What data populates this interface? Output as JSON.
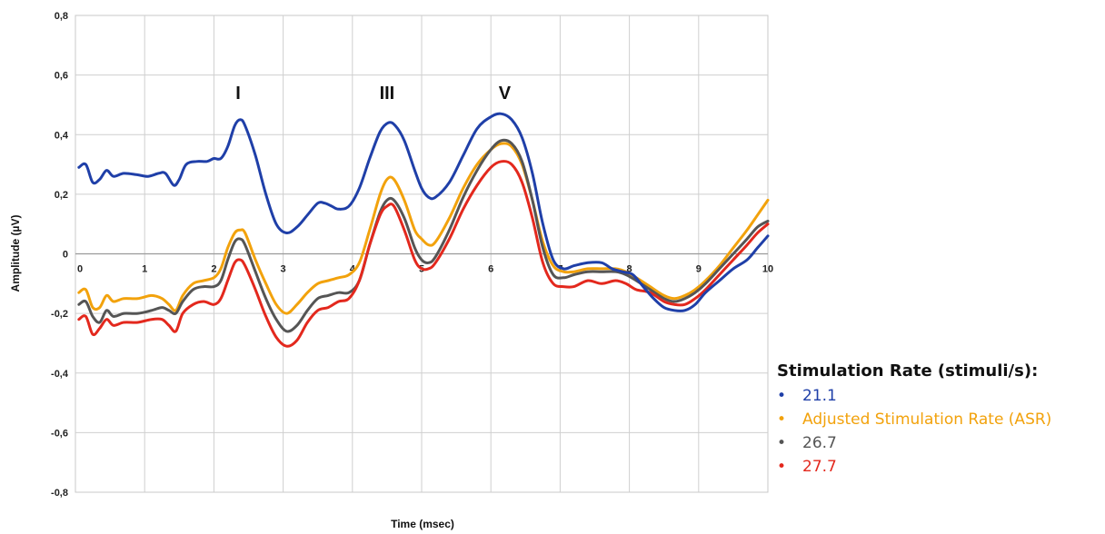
{
  "chart_data": {
    "type": "line",
    "xlabel": "Time (msec)",
    "ylabel": "Amplitude (µV)",
    "xlim": [
      0,
      10
    ],
    "ylim": [
      -0.8,
      0.8
    ],
    "x_ticks": [
      "0",
      "1",
      "2",
      "3",
      "4",
      "5",
      "6",
      "7",
      "8",
      "9",
      "10"
    ],
    "y_ticks": [
      "0,8",
      "0,6",
      "0,4",
      "0,2",
      "0",
      "-0,2",
      "-0,4",
      "-0,6",
      "-0,8"
    ],
    "grid": true,
    "legend_position": "bottom-right",
    "legend_title": "Stimulation Rate (stimuli/s):",
    "annotations": [
      {
        "text": "I",
        "x": 2.35,
        "y": 0.52
      },
      {
        "text": "III",
        "x": 4.5,
        "y": 0.52
      },
      {
        "text": "V",
        "x": 6.2,
        "y": 0.52
      }
    ],
    "series": [
      {
        "name": "21.1",
        "color": "#1f3fa8",
        "points": [
          [
            0.05,
            0.29
          ],
          [
            0.15,
            0.3
          ],
          [
            0.25,
            0.24
          ],
          [
            0.35,
            0.25
          ],
          [
            0.45,
            0.28
          ],
          [
            0.55,
            0.26
          ],
          [
            0.7,
            0.27
          ],
          [
            0.9,
            0.265
          ],
          [
            1.05,
            0.26
          ],
          [
            1.2,
            0.27
          ],
          [
            1.3,
            0.27
          ],
          [
            1.42,
            0.23
          ],
          [
            1.5,
            0.25
          ],
          [
            1.6,
            0.3
          ],
          [
            1.75,
            0.31
          ],
          [
            1.9,
            0.31
          ],
          [
            2.0,
            0.32
          ],
          [
            2.1,
            0.32
          ],
          [
            2.2,
            0.36
          ],
          [
            2.3,
            0.43
          ],
          [
            2.38,
            0.45
          ],
          [
            2.45,
            0.43
          ],
          [
            2.6,
            0.33
          ],
          [
            2.75,
            0.2
          ],
          [
            2.9,
            0.1
          ],
          [
            3.05,
            0.07
          ],
          [
            3.2,
            0.09
          ],
          [
            3.35,
            0.13
          ],
          [
            3.5,
            0.17
          ],
          [
            3.6,
            0.17
          ],
          [
            3.7,
            0.16
          ],
          [
            3.8,
            0.15
          ],
          [
            3.95,
            0.16
          ],
          [
            4.1,
            0.22
          ],
          [
            4.25,
            0.32
          ],
          [
            4.4,
            0.41
          ],
          [
            4.52,
            0.44
          ],
          [
            4.62,
            0.43
          ],
          [
            4.75,
            0.38
          ],
          [
            4.9,
            0.28
          ],
          [
            5.0,
            0.22
          ],
          [
            5.1,
            0.19
          ],
          [
            5.2,
            0.19
          ],
          [
            5.4,
            0.24
          ],
          [
            5.6,
            0.33
          ],
          [
            5.8,
            0.42
          ],
          [
            6.0,
            0.46
          ],
          [
            6.15,
            0.47
          ],
          [
            6.3,
            0.45
          ],
          [
            6.45,
            0.39
          ],
          [
            6.6,
            0.27
          ],
          [
            6.75,
            0.1
          ],
          [
            6.9,
            -0.02
          ],
          [
            7.05,
            -0.05
          ],
          [
            7.2,
            -0.04
          ],
          [
            7.4,
            -0.03
          ],
          [
            7.6,
            -0.03
          ],
          [
            7.75,
            -0.05
          ],
          [
            7.9,
            -0.06
          ],
          [
            8.05,
            -0.07
          ],
          [
            8.2,
            -0.11
          ],
          [
            8.35,
            -0.15
          ],
          [
            8.5,
            -0.18
          ],
          [
            8.65,
            -0.19
          ],
          [
            8.8,
            -0.19
          ],
          [
            8.95,
            -0.17
          ],
          [
            9.1,
            -0.13
          ],
          [
            9.3,
            -0.09
          ],
          [
            9.5,
            -0.05
          ],
          [
            9.7,
            -0.02
          ],
          [
            9.85,
            0.02
          ],
          [
            10.0,
            0.06
          ]
        ]
      },
      {
        "name": "Adjusted Stimulation Rate (ASR)",
        "color": "#f2a20c",
        "points": [
          [
            0.05,
            -0.13
          ],
          [
            0.15,
            -0.12
          ],
          [
            0.25,
            -0.18
          ],
          [
            0.35,
            -0.18
          ],
          [
            0.45,
            -0.14
          ],
          [
            0.55,
            -0.16
          ],
          [
            0.7,
            -0.15
          ],
          [
            0.9,
            -0.15
          ],
          [
            1.1,
            -0.14
          ],
          [
            1.25,
            -0.15
          ],
          [
            1.35,
            -0.17
          ],
          [
            1.45,
            -0.19
          ],
          [
            1.55,
            -0.14
          ],
          [
            1.7,
            -0.1
          ],
          [
            1.85,
            -0.09
          ],
          [
            2.0,
            -0.08
          ],
          [
            2.1,
            -0.05
          ],
          [
            2.2,
            0.02
          ],
          [
            2.3,
            0.07
          ],
          [
            2.38,
            0.08
          ],
          [
            2.45,
            0.07
          ],
          [
            2.6,
            -0.02
          ],
          [
            2.75,
            -0.1
          ],
          [
            2.9,
            -0.17
          ],
          [
            3.05,
            -0.2
          ],
          [
            3.2,
            -0.17
          ],
          [
            3.35,
            -0.13
          ],
          [
            3.5,
            -0.1
          ],
          [
            3.65,
            -0.09
          ],
          [
            3.8,
            -0.08
          ],
          [
            3.95,
            -0.07
          ],
          [
            4.1,
            -0.03
          ],
          [
            4.25,
            0.08
          ],
          [
            4.4,
            0.2
          ],
          [
            4.5,
            0.25
          ],
          [
            4.6,
            0.25
          ],
          [
            4.75,
            0.18
          ],
          [
            4.9,
            0.08
          ],
          [
            5.0,
            0.05
          ],
          [
            5.1,
            0.03
          ],
          [
            5.2,
            0.04
          ],
          [
            5.4,
            0.12
          ],
          [
            5.6,
            0.22
          ],
          [
            5.8,
            0.3
          ],
          [
            6.0,
            0.35
          ],
          [
            6.15,
            0.37
          ],
          [
            6.3,
            0.36
          ],
          [
            6.45,
            0.3
          ],
          [
            6.6,
            0.18
          ],
          [
            6.75,
            0.04
          ],
          [
            6.9,
            -0.04
          ],
          [
            7.05,
            -0.06
          ],
          [
            7.2,
            -0.06
          ],
          [
            7.4,
            -0.05
          ],
          [
            7.6,
            -0.05
          ],
          [
            7.8,
            -0.05
          ],
          [
            7.95,
            -0.06
          ],
          [
            8.1,
            -0.08
          ],
          [
            8.3,
            -0.11
          ],
          [
            8.5,
            -0.14
          ],
          [
            8.65,
            -0.15
          ],
          [
            8.8,
            -0.14
          ],
          [
            8.95,
            -0.12
          ],
          [
            9.1,
            -0.09
          ],
          [
            9.3,
            -0.04
          ],
          [
            9.5,
            0.02
          ],
          [
            9.7,
            0.08
          ],
          [
            9.85,
            0.13
          ],
          [
            10.0,
            0.18
          ]
        ]
      },
      {
        "name": "26.7",
        "color": "#555555",
        "points": [
          [
            0.05,
            -0.17
          ],
          [
            0.15,
            -0.16
          ],
          [
            0.25,
            -0.21
          ],
          [
            0.35,
            -0.23
          ],
          [
            0.45,
            -0.19
          ],
          [
            0.55,
            -0.21
          ],
          [
            0.7,
            -0.2
          ],
          [
            0.9,
            -0.2
          ],
          [
            1.1,
            -0.19
          ],
          [
            1.25,
            -0.18
          ],
          [
            1.35,
            -0.19
          ],
          [
            1.45,
            -0.2
          ],
          [
            1.55,
            -0.16
          ],
          [
            1.7,
            -0.12
          ],
          [
            1.85,
            -0.11
          ],
          [
            2.0,
            -0.11
          ],
          [
            2.1,
            -0.09
          ],
          [
            2.2,
            -0.02
          ],
          [
            2.3,
            0.04
          ],
          [
            2.38,
            0.05
          ],
          [
            2.45,
            0.03
          ],
          [
            2.6,
            -0.06
          ],
          [
            2.75,
            -0.15
          ],
          [
            2.9,
            -0.22
          ],
          [
            3.05,
            -0.26
          ],
          [
            3.2,
            -0.24
          ],
          [
            3.35,
            -0.19
          ],
          [
            3.5,
            -0.15
          ],
          [
            3.65,
            -0.14
          ],
          [
            3.8,
            -0.13
          ],
          [
            3.95,
            -0.13
          ],
          [
            4.1,
            -0.09
          ],
          [
            4.25,
            0.03
          ],
          [
            4.4,
            0.14
          ],
          [
            4.5,
            0.18
          ],
          [
            4.6,
            0.18
          ],
          [
            4.75,
            0.12
          ],
          [
            4.9,
            0.02
          ],
          [
            5.0,
            -0.02
          ],
          [
            5.1,
            -0.03
          ],
          [
            5.2,
            -0.01
          ],
          [
            5.4,
            0.08
          ],
          [
            5.6,
            0.19
          ],
          [
            5.8,
            0.28
          ],
          [
            6.0,
            0.35
          ],
          [
            6.15,
            0.38
          ],
          [
            6.3,
            0.37
          ],
          [
            6.45,
            0.31
          ],
          [
            6.6,
            0.18
          ],
          [
            6.75,
            0.02
          ],
          [
            6.9,
            -0.07
          ],
          [
            7.05,
            -0.08
          ],
          [
            7.2,
            -0.07
          ],
          [
            7.4,
            -0.06
          ],
          [
            7.6,
            -0.06
          ],
          [
            7.8,
            -0.06
          ],
          [
            7.95,
            -0.07
          ],
          [
            8.1,
            -0.09
          ],
          [
            8.3,
            -0.12
          ],
          [
            8.5,
            -0.15
          ],
          [
            8.65,
            -0.16
          ],
          [
            8.8,
            -0.15
          ],
          [
            8.95,
            -0.13
          ],
          [
            9.1,
            -0.1
          ],
          [
            9.3,
            -0.05
          ],
          [
            9.5,
            0.0
          ],
          [
            9.7,
            0.05
          ],
          [
            9.85,
            0.09
          ],
          [
            10.0,
            0.11
          ]
        ]
      },
      {
        "name": "27.7",
        "color": "#e3281d",
        "points": [
          [
            0.05,
            -0.22
          ],
          [
            0.15,
            -0.21
          ],
          [
            0.25,
            -0.27
          ],
          [
            0.35,
            -0.25
          ],
          [
            0.45,
            -0.22
          ],
          [
            0.55,
            -0.24
          ],
          [
            0.7,
            -0.23
          ],
          [
            0.9,
            -0.23
          ],
          [
            1.1,
            -0.22
          ],
          [
            1.25,
            -0.22
          ],
          [
            1.35,
            -0.24
          ],
          [
            1.45,
            -0.26
          ],
          [
            1.55,
            -0.2
          ],
          [
            1.7,
            -0.17
          ],
          [
            1.85,
            -0.16
          ],
          [
            2.0,
            -0.17
          ],
          [
            2.1,
            -0.15
          ],
          [
            2.2,
            -0.09
          ],
          [
            2.3,
            -0.03
          ],
          [
            2.38,
            -0.02
          ],
          [
            2.45,
            -0.04
          ],
          [
            2.6,
            -0.12
          ],
          [
            2.75,
            -0.21
          ],
          [
            2.9,
            -0.28
          ],
          [
            3.05,
            -0.31
          ],
          [
            3.2,
            -0.29
          ],
          [
            3.35,
            -0.23
          ],
          [
            3.5,
            -0.19
          ],
          [
            3.65,
            -0.18
          ],
          [
            3.8,
            -0.16
          ],
          [
            3.95,
            -0.15
          ],
          [
            4.1,
            -0.09
          ],
          [
            4.25,
            0.03
          ],
          [
            4.4,
            0.13
          ],
          [
            4.5,
            0.16
          ],
          [
            4.6,
            0.16
          ],
          [
            4.75,
            0.08
          ],
          [
            4.9,
            -0.02
          ],
          [
            5.0,
            -0.05
          ],
          [
            5.1,
            -0.05
          ],
          [
            5.2,
            -0.03
          ],
          [
            5.4,
            0.05
          ],
          [
            5.6,
            0.15
          ],
          [
            5.8,
            0.23
          ],
          [
            6.0,
            0.29
          ],
          [
            6.15,
            0.31
          ],
          [
            6.3,
            0.3
          ],
          [
            6.45,
            0.24
          ],
          [
            6.6,
            0.12
          ],
          [
            6.75,
            -0.03
          ],
          [
            6.9,
            -0.1
          ],
          [
            7.05,
            -0.11
          ],
          [
            7.2,
            -0.11
          ],
          [
            7.4,
            -0.09
          ],
          [
            7.6,
            -0.1
          ],
          [
            7.8,
            -0.09
          ],
          [
            7.95,
            -0.1
          ],
          [
            8.1,
            -0.12
          ],
          [
            8.3,
            -0.13
          ],
          [
            8.5,
            -0.16
          ],
          [
            8.65,
            -0.17
          ],
          [
            8.8,
            -0.17
          ],
          [
            8.95,
            -0.15
          ],
          [
            9.1,
            -0.12
          ],
          [
            9.3,
            -0.07
          ],
          [
            9.5,
            -0.02
          ],
          [
            9.7,
            0.03
          ],
          [
            9.85,
            0.07
          ],
          [
            10.0,
            0.1
          ]
        ]
      }
    ]
  }
}
